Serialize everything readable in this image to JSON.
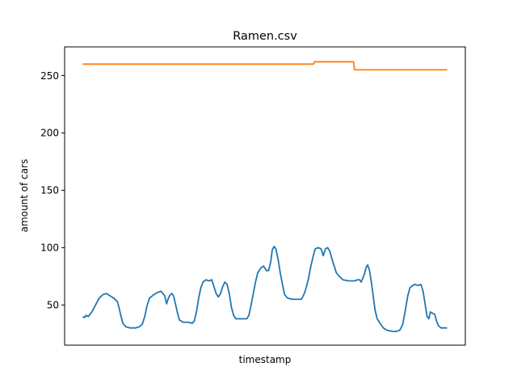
{
  "chart_data": {
    "type": "line",
    "title": "Ramen.csv",
    "xlabel": "timestamp",
    "ylabel": "amount of cars",
    "x_ticks_visible": false,
    "ylim": [
      15.0,
      275.0
    ],
    "yticks": [
      50,
      100,
      150,
      200,
      250
    ],
    "ytick_labels": [
      "50",
      "100",
      "150",
      "200",
      "250"
    ],
    "grid": false,
    "series": [
      {
        "color": "#1f77b4",
        "points": [
          [
            0.0,
            40
          ],
          [
            0.5,
            39
          ],
          [
            0.9,
            41
          ],
          [
            1.5,
            40
          ],
          [
            2.5,
            44
          ],
          [
            3.5,
            50
          ],
          [
            4.5,
            56
          ],
          [
            5.5,
            59
          ],
          [
            6.5,
            60
          ],
          [
            7.5,
            58
          ],
          [
            8.5,
            56
          ],
          [
            9.5,
            53
          ],
          [
            10.0,
            47
          ],
          [
            10.5,
            40
          ],
          [
            11.0,
            34
          ],
          [
            11.8,
            31
          ],
          [
            13.0,
            30
          ],
          [
            14.5,
            30
          ],
          [
            15.5,
            31
          ],
          [
            16.3,
            33
          ],
          [
            17.0,
            40
          ],
          [
            17.6,
            49
          ],
          [
            18.3,
            56
          ],
          [
            19.5,
            59
          ],
          [
            20.5,
            61
          ],
          [
            21.5,
            62
          ],
          [
            22.5,
            58
          ],
          [
            23.0,
            51
          ],
          [
            23.5,
            56
          ],
          [
            24.0,
            59
          ],
          [
            24.5,
            60
          ],
          [
            25.0,
            57
          ],
          [
            25.5,
            50
          ],
          [
            26.0,
            43
          ],
          [
            26.5,
            37
          ],
          [
            27.5,
            35
          ],
          [
            29.0,
            35
          ],
          [
            30.0,
            34
          ],
          [
            30.6,
            36
          ],
          [
            31.2,
            44
          ],
          [
            31.8,
            56
          ],
          [
            32.4,
            65
          ],
          [
            33.0,
            70
          ],
          [
            33.8,
            72
          ],
          [
            34.6,
            71
          ],
          [
            35.4,
            72
          ],
          [
            36.0,
            66
          ],
          [
            36.6,
            60
          ],
          [
            37.2,
            57
          ],
          [
            37.8,
            60
          ],
          [
            38.4,
            66
          ],
          [
            39.0,
            70
          ],
          [
            39.6,
            68
          ],
          [
            40.2,
            60
          ],
          [
            40.8,
            48
          ],
          [
            41.4,
            41
          ],
          [
            42.0,
            38
          ],
          [
            43.5,
            38
          ],
          [
            45.0,
            38
          ],
          [
            45.6,
            41
          ],
          [
            46.2,
            50
          ],
          [
            46.8,
            60
          ],
          [
            47.4,
            70
          ],
          [
            48.0,
            78
          ],
          [
            48.8,
            82
          ],
          [
            49.6,
            84
          ],
          [
            50.4,
            80
          ],
          [
            51.0,
            80
          ],
          [
            51.6,
            88
          ],
          [
            52.0,
            98
          ],
          [
            52.5,
            101
          ],
          [
            53.0,
            99
          ],
          [
            53.6,
            90
          ],
          [
            54.2,
            78
          ],
          [
            54.8,
            68
          ],
          [
            55.4,
            59
          ],
          [
            56.2,
            56
          ],
          [
            57.5,
            55
          ],
          [
            59.0,
            55
          ],
          [
            60.0,
            55
          ],
          [
            60.8,
            60
          ],
          [
            61.4,
            66
          ],
          [
            62.0,
            74
          ],
          [
            62.6,
            84
          ],
          [
            63.2,
            92
          ],
          [
            63.8,
            99
          ],
          [
            64.6,
            100
          ],
          [
            65.4,
            99
          ],
          [
            66.0,
            93
          ],
          [
            66.6,
            99
          ],
          [
            67.2,
            100
          ],
          [
            67.8,
            97
          ],
          [
            68.4,
            90
          ],
          [
            69.0,
            84
          ],
          [
            69.6,
            78
          ],
          [
            70.4,
            75
          ],
          [
            71.4,
            72
          ],
          [
            73.0,
            71
          ],
          [
            74.5,
            71
          ],
          [
            75.5,
            72
          ],
          [
            76.0,
            72
          ],
          [
            76.4,
            70
          ],
          [
            76.8,
            73
          ],
          [
            77.3,
            77
          ],
          [
            77.8,
            83
          ],
          [
            78.2,
            85
          ],
          [
            78.7,
            80
          ],
          [
            79.2,
            70
          ],
          [
            79.7,
            58
          ],
          [
            80.2,
            46
          ],
          [
            80.8,
            38
          ],
          [
            81.6,
            34
          ],
          [
            82.5,
            30
          ],
          [
            83.5,
            28
          ],
          [
            85.0,
            27
          ],
          [
            86.0,
            27
          ],
          [
            87.0,
            28
          ],
          [
            87.8,
            33
          ],
          [
            88.5,
            45
          ],
          [
            89.2,
            58
          ],
          [
            89.8,
            65
          ],
          [
            90.5,
            67
          ],
          [
            91.2,
            68
          ],
          [
            92.0,
            67
          ],
          [
            92.8,
            68
          ],
          [
            93.4,
            62
          ],
          [
            94.0,
            50
          ],
          [
            94.5,
            40
          ],
          [
            95.0,
            38
          ],
          [
            95.4,
            44
          ],
          [
            95.9,
            43
          ],
          [
            96.6,
            42
          ],
          [
            97.1,
            36
          ],
          [
            97.6,
            32
          ],
          [
            98.3,
            30
          ],
          [
            99.2,
            30
          ],
          [
            100.0,
            30
          ]
        ]
      },
      {
        "color": "#ff7f0e",
        "points": [
          [
            0.0,
            260
          ],
          [
            63.3,
            260
          ],
          [
            63.6,
            262
          ],
          [
            74.3,
            262
          ],
          [
            74.6,
            255
          ],
          [
            100.0,
            255
          ]
        ]
      }
    ]
  }
}
